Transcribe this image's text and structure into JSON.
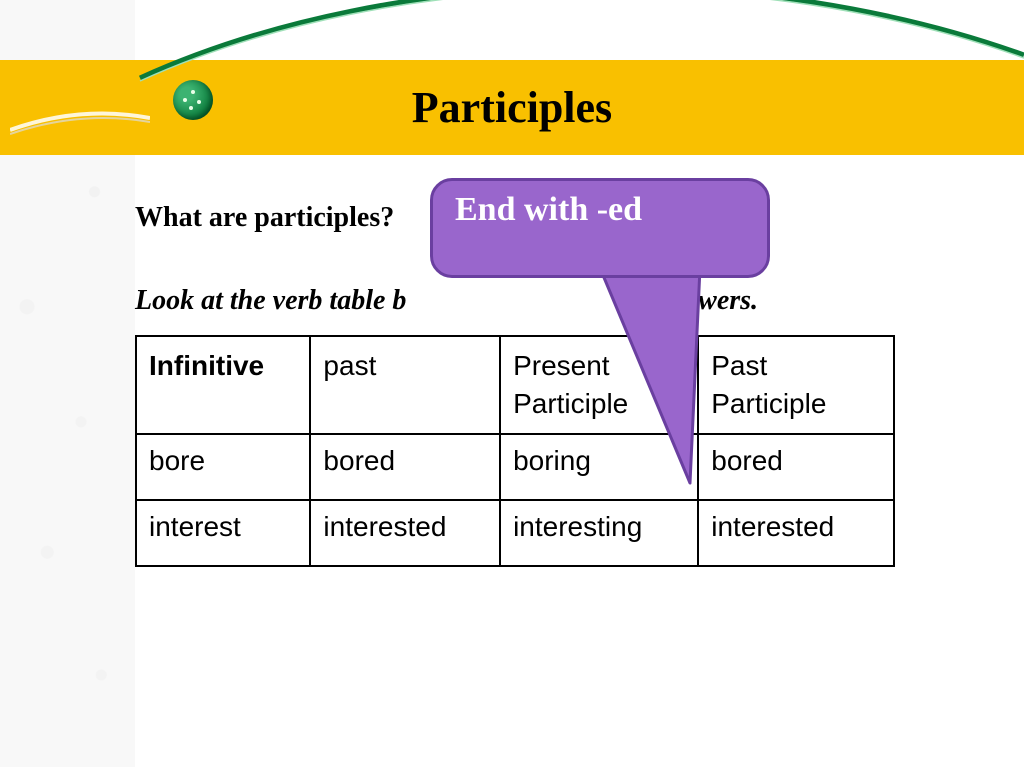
{
  "title": "Participles",
  "question": "What are participles?",
  "instruction_full": "Look at the verb table below and find out the answers.",
  "instruction_left": "Look at the verb table b",
  "instruction_right": "nswers.",
  "callout": {
    "text": "End with -ed",
    "bg_color": "#9966cc",
    "border_color": "#6a3fa0",
    "text_color": "#ffffff",
    "fontsize": 34
  },
  "banner": {
    "bg_color": "#f9c000",
    "title_color": "#000000",
    "title_fontsize": 44
  },
  "swoosh_color": "#0a7a3a",
  "table": {
    "columns": [
      "Infinitive",
      "past",
      "Present Participle",
      "Past Participle"
    ],
    "rows": [
      [
        "bore",
        "bored",
        "boring",
        "bored"
      ],
      [
        "interest",
        "interested",
        "interesting",
        "interested"
      ]
    ],
    "border_color": "#000000",
    "header_fontsize": 28,
    "cell_fontsize": 28,
    "font_family": "Arial"
  }
}
